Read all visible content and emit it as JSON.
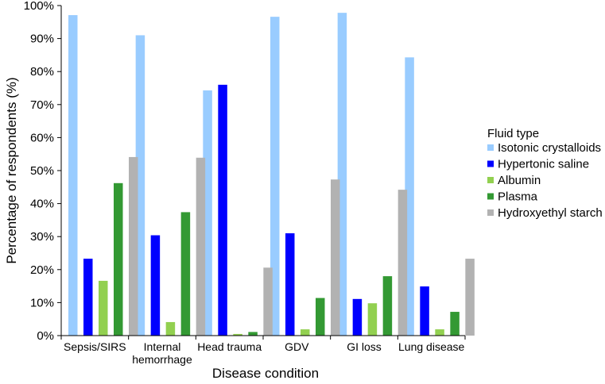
{
  "chart_data": {
    "type": "bar",
    "xlabel": "Disease condition",
    "ylabel": "Percentage of respondents (%)",
    "ylim": [
      0,
      100
    ],
    "ytick_step": 10,
    "ytick_suffix": "%",
    "grid": false,
    "legend_position": "right",
    "legend_title": "Fluid type",
    "categories": [
      [
        "Sepsis/SIRS"
      ],
      [
        "Internal",
        "hemorrhage"
      ],
      [
        "Head trauma"
      ],
      [
        "GDV"
      ],
      [
        "GI loss"
      ],
      [
        "Lung disease"
      ]
    ],
    "series": [
      {
        "name": "Isotonic crystalloids",
        "color": "#99ccff",
        "values": [
          97.1,
          91.0,
          74.3,
          96.6,
          97.8,
          84.3
        ]
      },
      {
        "name": "Hypertonic saline",
        "color": "#0000ff",
        "values": [
          23.3,
          30.4,
          76.0,
          31.0,
          11.1,
          14.9
        ]
      },
      {
        "name": "Albumin",
        "color": "#92d050",
        "values": [
          16.6,
          4.1,
          0.5,
          1.9,
          9.8,
          1.9
        ]
      },
      {
        "name": "Plasma",
        "color": "#339933",
        "values": [
          46.2,
          37.4,
          1.1,
          11.4,
          18.0,
          7.2
        ]
      },
      {
        "name": "Hydroxyethyl starch",
        "color": "#b2b2b2",
        "values": [
          54.1,
          53.9,
          20.6,
          47.3,
          44.2,
          23.3
        ]
      }
    ]
  }
}
